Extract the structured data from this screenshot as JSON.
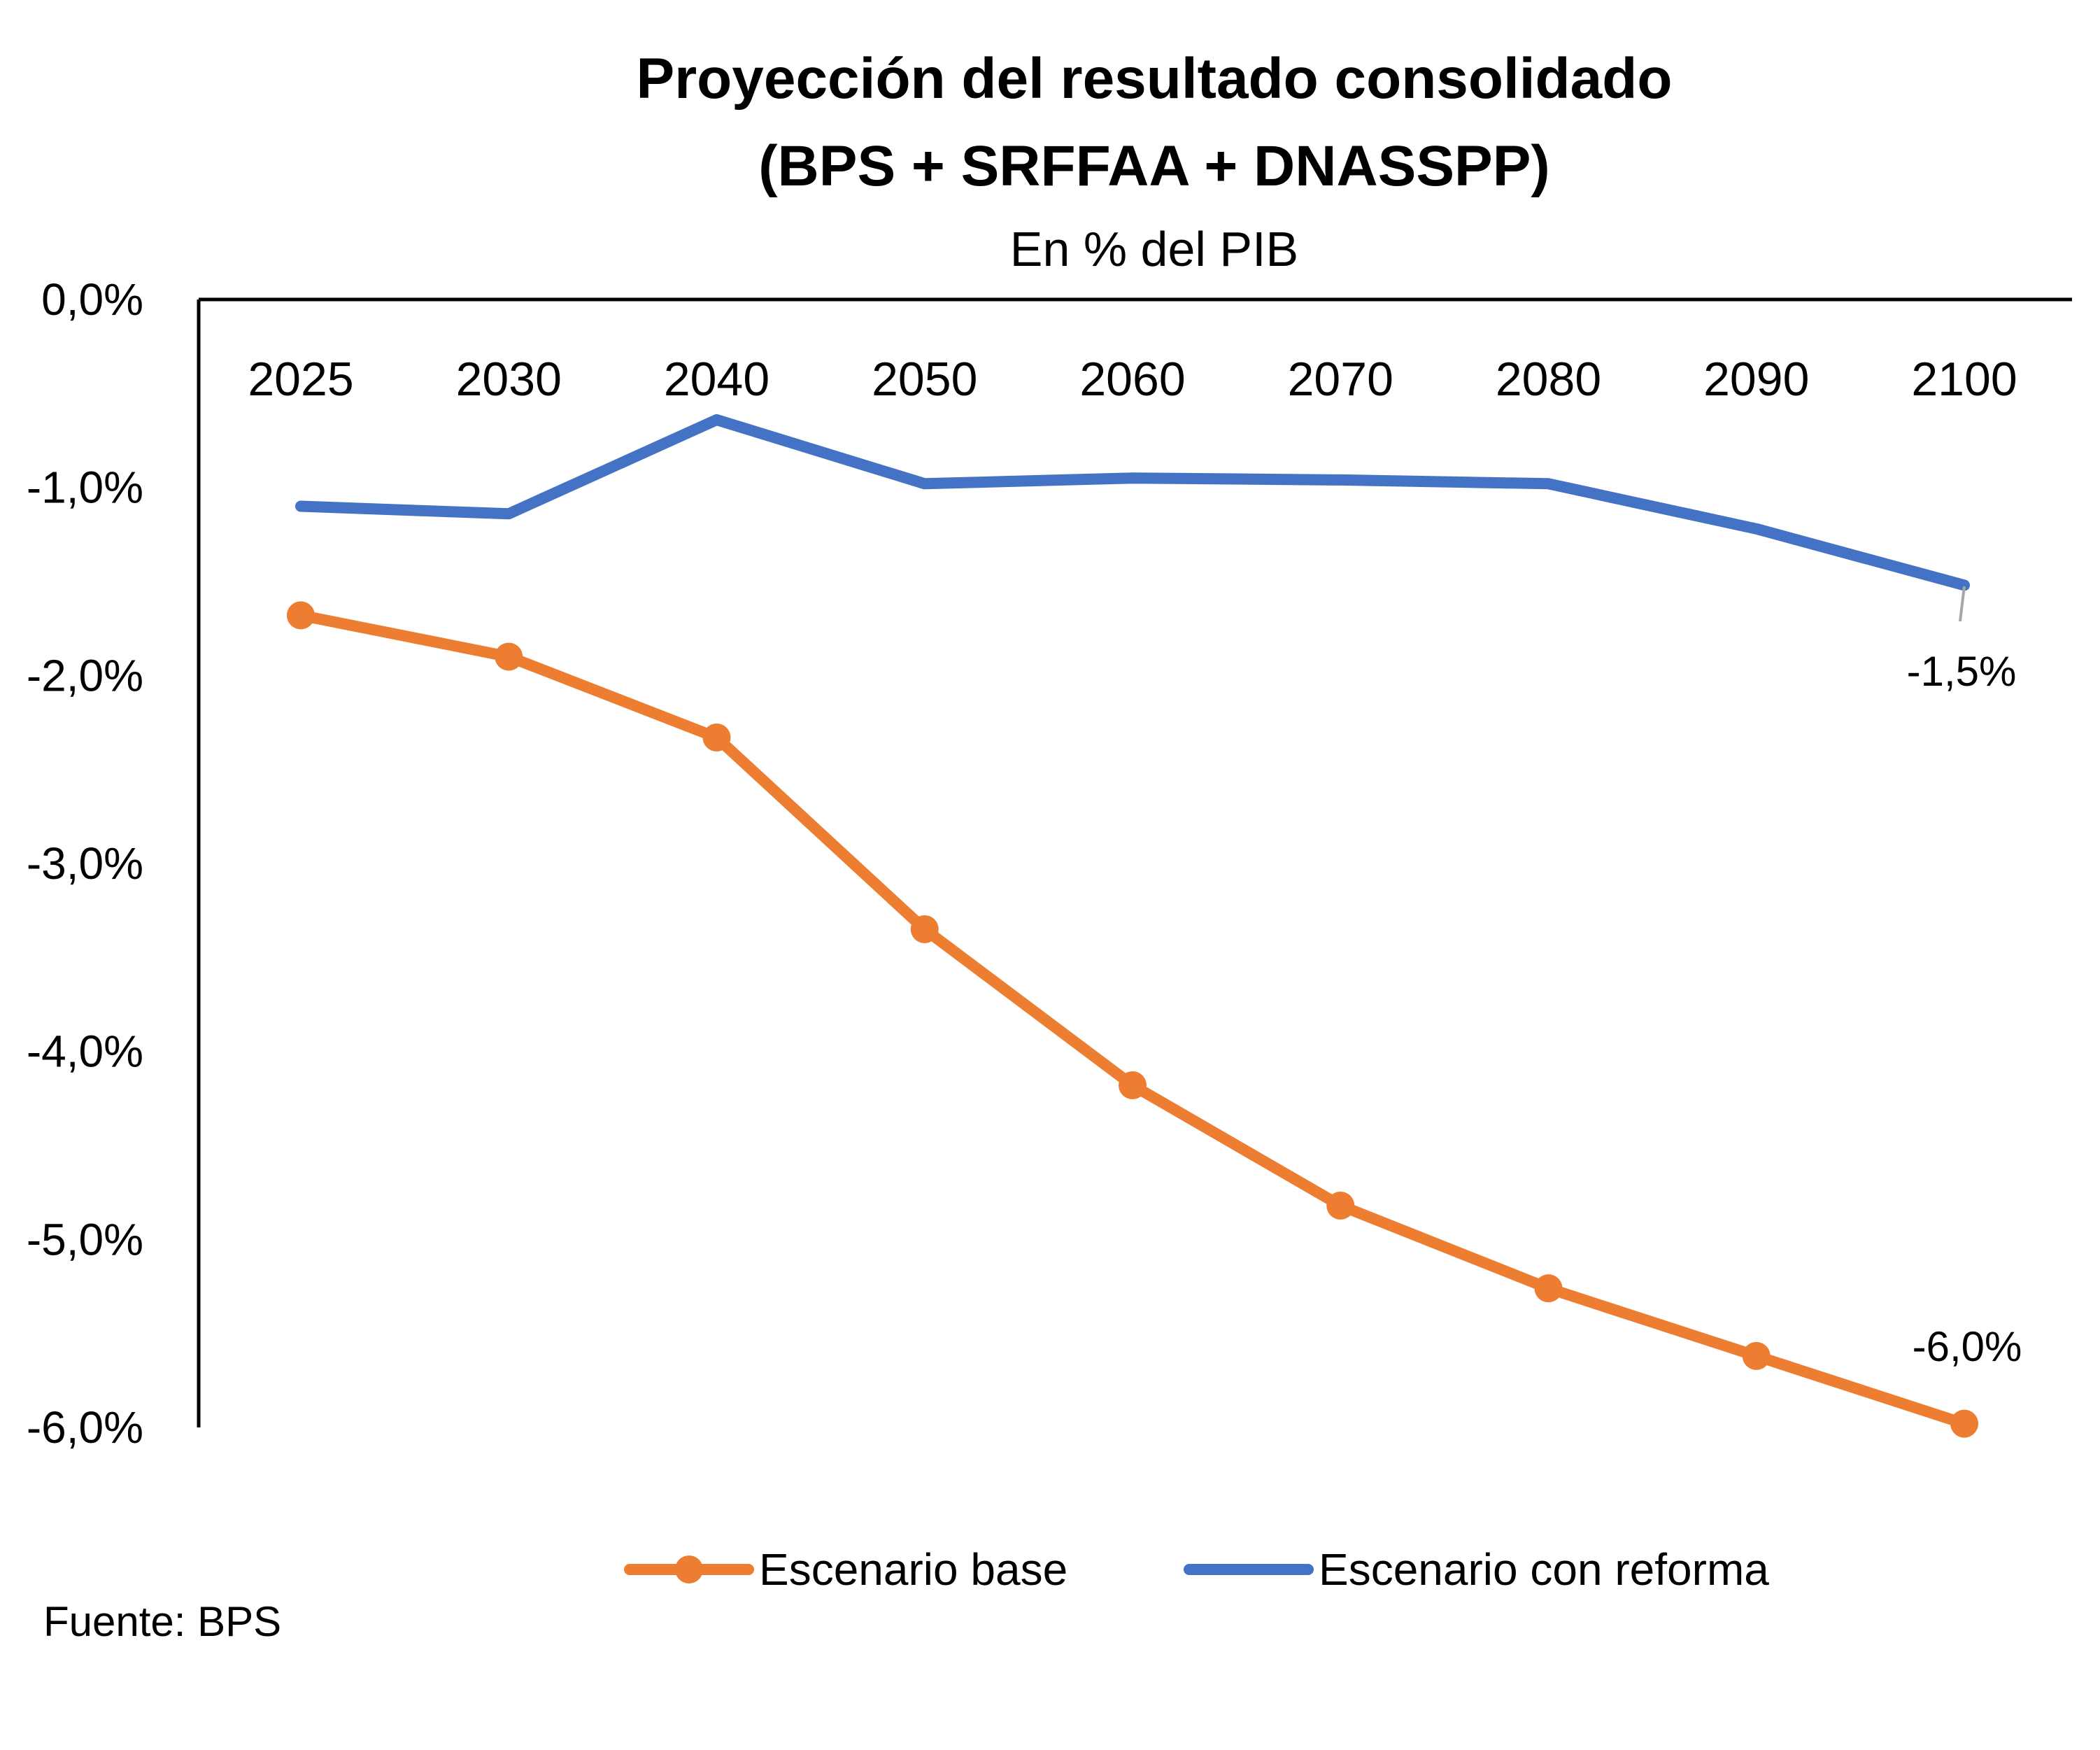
{
  "chart_data": {
    "type": "line",
    "title": "Proyección del resultado consolidado",
    "title_line2": "(BPS + SRFFAA + DNASSPP)",
    "subtitle": "En % del PIB",
    "categories": [
      "2025",
      "2030",
      "2040",
      "2050",
      "2060",
      "2070",
      "2080",
      "2090",
      "2100"
    ],
    "ylim": [
      -6.0,
      0.0
    ],
    "yticks": [
      0.0,
      -1.0,
      -2.0,
      -3.0,
      -4.0,
      -5.0,
      -6.0
    ],
    "ytick_labels": [
      "0,0%",
      "-1,0%",
      "-2,0%",
      "-3,0%",
      "-4,0%",
      "-5,0%",
      "-6,0%"
    ],
    "xlabel": "",
    "ylabel": "",
    "x_axis_position": "top",
    "grid": false,
    "legend_position": "bottom",
    "series": [
      {
        "name": "Escenario base",
        "color": "#ED7D31",
        "markers": true,
        "values": [
          -1.68,
          -1.9,
          -2.33,
          -3.35,
          -4.18,
          -4.82,
          -5.26,
          -5.62,
          -5.98
        ],
        "end_label": "-6,0%"
      },
      {
        "name": "Escenario con reforma",
        "color": "#4472C4",
        "markers": false,
        "values": [
          -1.1,
          -1.14,
          -0.64,
          -0.98,
          -0.95,
          -0.96,
          -0.98,
          -1.22,
          -1.52
        ],
        "end_label": "-1,5%"
      }
    ],
    "source": "Fuente: BPS"
  }
}
